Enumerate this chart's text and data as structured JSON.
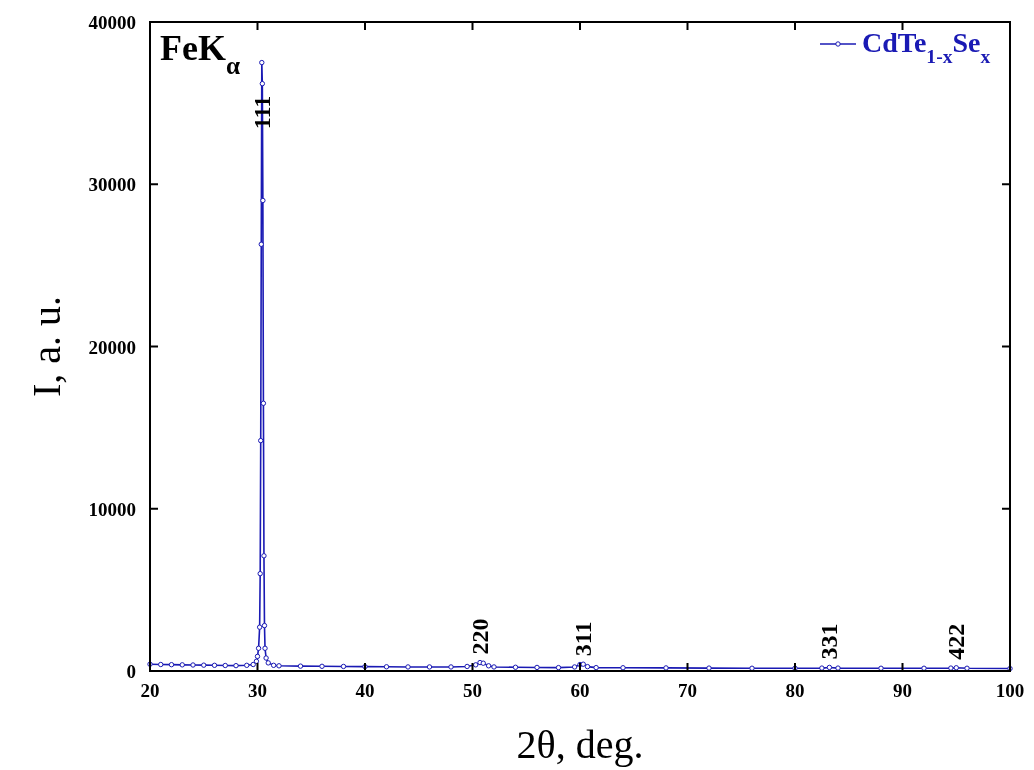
{
  "chart_data": {
    "type": "line",
    "xlabel": "2θ, deg.",
    "ylabel": "I, a. u.",
    "xlim": [
      20,
      100
    ],
    "ylim": [
      0,
      40000
    ],
    "xticks": [
      20,
      30,
      40,
      50,
      60,
      70,
      80,
      90,
      100
    ],
    "yticks": [
      0,
      10000,
      20000,
      30000,
      40000
    ],
    "grid": false,
    "legend": "top right",
    "marker": "circle",
    "line_style": "solid",
    "series": [
      {
        "name": "CdTe$_{1-x}$Se$_{x}$",
        "color": "#1a1ab4",
        "x": [
          20,
          21,
          22,
          23,
          24,
          25,
          26,
          27,
          28,
          29,
          29.6,
          29.9,
          30.0,
          30.1,
          30.2,
          30.25,
          30.3,
          30.35,
          30.4,
          30.45,
          30.5,
          30.55,
          30.6,
          30.65,
          30.7,
          30.8,
          31,
          31.5,
          32,
          34,
          36,
          38,
          40,
          42,
          44,
          46,
          48,
          49.5,
          50.3,
          50.7,
          51.0,
          51.5,
          52,
          54,
          56,
          58,
          59.5,
          60.0,
          60.3,
          60.7,
          61.5,
          64,
          68,
          72,
          76,
          80,
          82.5,
          83.2,
          84,
          88,
          92,
          94.5,
          95,
          96,
          100
        ],
        "values": [
          420,
          400,
          390,
          380,
          370,
          360,
          350,
          340,
          330,
          350,
          400,
          600,
          900,
          1400,
          2700,
          6000,
          14200,
          26300,
          37500,
          36200,
          29000,
          16500,
          7100,
          2800,
          1400,
          800,
          500,
          350,
          320,
          300,
          290,
          280,
          270,
          260,
          250,
          250,
          250,
          280,
          380,
          520,
          480,
          320,
          250,
          230,
          220,
          210,
          250,
          400,
          420,
          270,
          210,
          200,
          190,
          180,
          170,
          170,
          180,
          220,
          180,
          170,
          170,
          180,
          200,
          170,
          150
        ]
      }
    ],
    "annotations": [
      "FeK$_{α}$",
      {
        "text": "111",
        "x": 30.38,
        "y": 32900
      },
      {
        "text": "220",
        "x": 50.7,
        "y": 520
      },
      {
        "text": "311",
        "x": 60.3,
        "y": 420
      },
      {
        "text": "331",
        "x": 83.2,
        "y": 220
      },
      {
        "text": "422",
        "x": 95,
        "y": 200
      }
    ]
  }
}
